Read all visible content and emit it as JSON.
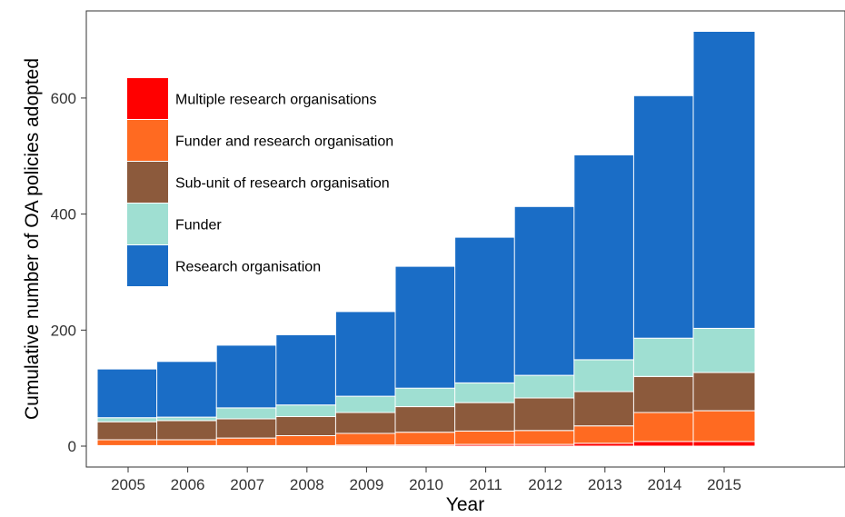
{
  "chart_data": {
    "type": "bar",
    "stacked": true,
    "xlabel": "Year",
    "ylabel": "Cumulative number of OA policies adopted",
    "ylim": [
      0,
      720
    ],
    "yticks": [
      0,
      200,
      400,
      600
    ],
    "categories": [
      "2005",
      "2006",
      "2007",
      "2008",
      "2009",
      "2010",
      "2011",
      "2012",
      "2013",
      "2014",
      "2015"
    ],
    "series": [
      {
        "name": "Multiple research organisations",
        "color": "#ff0000",
        "values": [
          1,
          1,
          1,
          1,
          2,
          2,
          3,
          3,
          5,
          8,
          8
        ]
      },
      {
        "name": "Funder and research organisation",
        "color": "#ff6a21",
        "values": [
          10,
          10,
          13,
          17,
          20,
          22,
          23,
          24,
          30,
          50,
          53
        ]
      },
      {
        "name": "Sub-unit of research organisation",
        "color": "#8c5a3c",
        "values": [
          31,
          33,
          33,
          33,
          36,
          44,
          49,
          56,
          59,
          62,
          66
        ]
      },
      {
        "name": "Funder",
        "color": "#9fdfd2",
        "values": [
          7,
          6,
          19,
          20,
          28,
          32,
          34,
          39,
          55,
          66,
          76
        ]
      },
      {
        "name": "Research organisation",
        "color": "#1a6dc6",
        "values": [
          84,
          96,
          108,
          121,
          146,
          210,
          251,
          291,
          353,
          418,
          512
        ]
      }
    ],
    "grid": false,
    "legend_position": "top-left",
    "legend_order": [
      "Multiple research organisations",
      "Funder and research organisation",
      "Sub-unit of research organisation",
      "Funder",
      "Research organisation"
    ]
  }
}
